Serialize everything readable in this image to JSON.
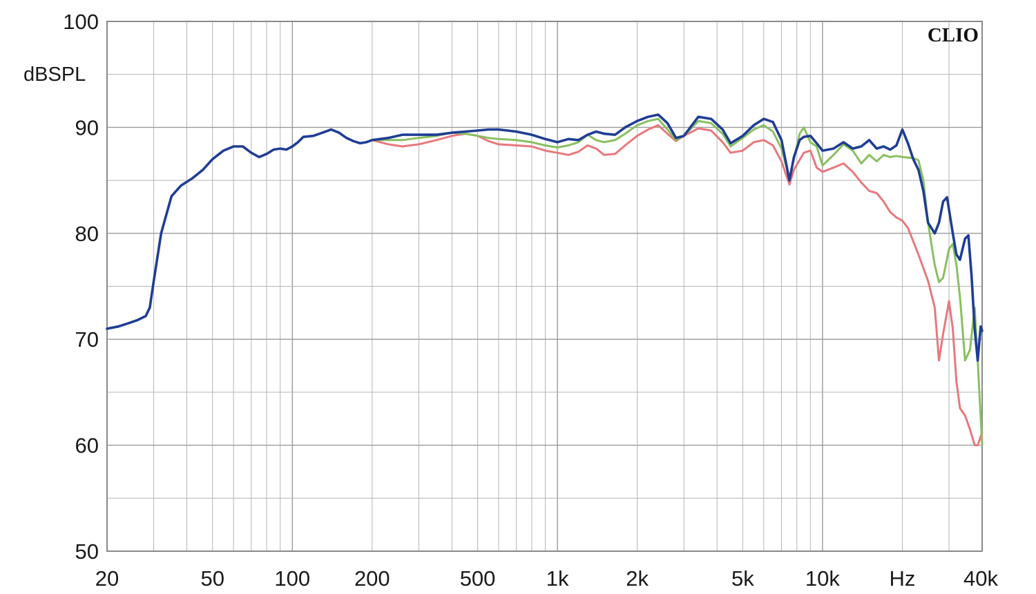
{
  "chart_data": {
    "type": "line",
    "title": "",
    "xlabel": "Hz",
    "ylabel": "dBSPL",
    "brand": "CLIO",
    "x_scale": "log",
    "xlim": [
      20,
      40000
    ],
    "ylim": [
      50,
      100
    ],
    "grid": true,
    "x_ticks": [
      {
        "value": 20,
        "label": "20"
      },
      {
        "value": 50,
        "label": "50"
      },
      {
        "value": 100,
        "label": "100"
      },
      {
        "value": 200,
        "label": "200"
      },
      {
        "value": 500,
        "label": "500"
      },
      {
        "value": 1000,
        "label": "1k"
      },
      {
        "value": 2000,
        "label": "2k"
      },
      {
        "value": 5000,
        "label": "5k"
      },
      {
        "value": 10000,
        "label": "10k"
      },
      {
        "value": 20000,
        "label": "Hz"
      },
      {
        "value": 40000,
        "label": "40k"
      }
    ],
    "y_ticks": [
      {
        "value": 100,
        "label": "100"
      },
      {
        "value": 90,
        "label": "90"
      },
      {
        "value": 80,
        "label": "80"
      },
      {
        "value": 70,
        "label": "70"
      },
      {
        "value": 60,
        "label": "60"
      },
      {
        "value": 50,
        "label": "50"
      }
    ],
    "series": [
      {
        "color": "#e8787c",
        "points": [
          [
            200,
            88.8
          ],
          [
            230,
            88.4
          ],
          [
            260,
            88.2
          ],
          [
            300,
            88.4
          ],
          [
            350,
            88.8
          ],
          [
            400,
            89.2
          ],
          [
            450,
            89.4
          ],
          [
            500,
            89.2
          ],
          [
            550,
            88.7
          ],
          [
            600,
            88.4
          ],
          [
            700,
            88.3
          ],
          [
            800,
            88.2
          ],
          [
            900,
            87.8
          ],
          [
            1000,
            87.6
          ],
          [
            1100,
            87.4
          ],
          [
            1200,
            87.7
          ],
          [
            1300,
            88.3
          ],
          [
            1400,
            88.0
          ],
          [
            1500,
            87.4
          ],
          [
            1650,
            87.5
          ],
          [
            1800,
            88.3
          ],
          [
            2000,
            89.2
          ],
          [
            2200,
            89.8
          ],
          [
            2400,
            90.2
          ],
          [
            2600,
            89.4
          ],
          [
            2800,
            88.7
          ],
          [
            3000,
            89.2
          ],
          [
            3400,
            89.9
          ],
          [
            3800,
            89.7
          ],
          [
            4200,
            88.6
          ],
          [
            4500,
            87.6
          ],
          [
            5000,
            87.8
          ],
          [
            5500,
            88.6
          ],
          [
            6000,
            88.8
          ],
          [
            6500,
            88.3
          ],
          [
            7000,
            86.8
          ],
          [
            7500,
            84.6
          ],
          [
            7800,
            86.0
          ],
          [
            8500,
            87.6
          ],
          [
            9000,
            87.8
          ],
          [
            9500,
            86.2
          ],
          [
            10000,
            85.8
          ],
          [
            11000,
            86.2
          ],
          [
            12000,
            86.6
          ],
          [
            13000,
            85.8
          ],
          [
            14000,
            84.8
          ],
          [
            15000,
            84.0
          ],
          [
            16000,
            83.8
          ],
          [
            17000,
            83.0
          ],
          [
            18000,
            82.0
          ],
          [
            19000,
            81.5
          ],
          [
            20000,
            81.2
          ],
          [
            21000,
            80.5
          ],
          [
            23000,
            78.0
          ],
          [
            25000,
            75.5
          ],
          [
            26500,
            73.0
          ],
          [
            27500,
            68.0
          ],
          [
            28500,
            70.5
          ],
          [
            30000,
            73.6
          ],
          [
            31000,
            71.0
          ],
          [
            32000,
            66.0
          ],
          [
            33000,
            63.5
          ],
          [
            34500,
            62.8
          ],
          [
            36000,
            61.5
          ],
          [
            37500,
            60.0
          ],
          [
            38500,
            60.0
          ],
          [
            40000,
            61.2
          ]
        ]
      },
      {
        "color": "#88c060",
        "points": [
          [
            200,
            88.8
          ],
          [
            230,
            88.8
          ],
          [
            260,
            88.8
          ],
          [
            300,
            89.0
          ],
          [
            350,
            89.2
          ],
          [
            400,
            89.5
          ],
          [
            450,
            89.4
          ],
          [
            500,
            89.2
          ],
          [
            550,
            89.0
          ],
          [
            600,
            88.9
          ],
          [
            700,
            88.8
          ],
          [
            800,
            88.6
          ],
          [
            900,
            88.3
          ],
          [
            1000,
            88.1
          ],
          [
            1100,
            88.3
          ],
          [
            1200,
            88.6
          ],
          [
            1300,
            89.3
          ],
          [
            1400,
            88.8
          ],
          [
            1500,
            88.6
          ],
          [
            1650,
            88.8
          ],
          [
            1800,
            89.4
          ],
          [
            2000,
            90.2
          ],
          [
            2200,
            90.6
          ],
          [
            2400,
            90.8
          ],
          [
            2600,
            89.8
          ],
          [
            2800,
            88.8
          ],
          [
            3000,
            89.2
          ],
          [
            3400,
            90.6
          ],
          [
            3800,
            90.4
          ],
          [
            4200,
            89.4
          ],
          [
            4500,
            88.2
          ],
          [
            5000,
            89.0
          ],
          [
            5500,
            89.8
          ],
          [
            6000,
            90.2
          ],
          [
            6500,
            89.6
          ],
          [
            7000,
            88.0
          ],
          [
            7500,
            85.2
          ],
          [
            7800,
            87.0
          ],
          [
            8200,
            89.4
          ],
          [
            8500,
            90.0
          ],
          [
            9000,
            88.6
          ],
          [
            9500,
            88.2
          ],
          [
            10000,
            86.4
          ],
          [
            11000,
            87.4
          ],
          [
            12000,
            88.4
          ],
          [
            13000,
            87.8
          ],
          [
            14000,
            86.6
          ],
          [
            15000,
            87.4
          ],
          [
            16000,
            86.8
          ],
          [
            17000,
            87.4
          ],
          [
            18000,
            87.2
          ],
          [
            19000,
            87.3
          ],
          [
            20000,
            87.2
          ],
          [
            22000,
            87.1
          ],
          [
            23000,
            86.9
          ],
          [
            24000,
            85.0
          ],
          [
            25000,
            81.0
          ],
          [
            26500,
            77.0
          ],
          [
            27500,
            75.4
          ],
          [
            28500,
            75.8
          ],
          [
            30000,
            78.5
          ],
          [
            31000,
            79.0
          ],
          [
            32000,
            77.0
          ],
          [
            33000,
            74.0
          ],
          [
            34500,
            68.0
          ],
          [
            36000,
            69.0
          ],
          [
            37500,
            73.0
          ],
          [
            38500,
            68.0
          ],
          [
            40000,
            60.0
          ]
        ]
      },
      {
        "color": "#1f3d94",
        "points": [
          [
            20,
            71.0
          ],
          [
            22,
            71.2
          ],
          [
            24,
            71.5
          ],
          [
            26,
            71.8
          ],
          [
            28,
            72.2
          ],
          [
            29,
            73.0
          ],
          [
            30,
            75.5
          ],
          [
            32,
            80.0
          ],
          [
            35,
            83.5
          ],
          [
            38,
            84.5
          ],
          [
            42,
            85.2
          ],
          [
            46,
            86.0
          ],
          [
            50,
            87.0
          ],
          [
            55,
            87.8
          ],
          [
            60,
            88.2
          ],
          [
            65,
            88.2
          ],
          [
            70,
            87.6
          ],
          [
            75,
            87.2
          ],
          [
            80,
            87.5
          ],
          [
            85,
            87.9
          ],
          [
            90,
            88.0
          ],
          [
            95,
            87.9
          ],
          [
            100,
            88.2
          ],
          [
            105,
            88.6
          ],
          [
            110,
            89.1
          ],
          [
            120,
            89.2
          ],
          [
            130,
            89.5
          ],
          [
            140,
            89.8
          ],
          [
            150,
            89.5
          ],
          [
            160,
            89.0
          ],
          [
            170,
            88.7
          ],
          [
            180,
            88.5
          ],
          [
            190,
            88.6
          ],
          [
            200,
            88.8
          ],
          [
            230,
            89.0
          ],
          [
            260,
            89.3
          ],
          [
            300,
            89.3
          ],
          [
            350,
            89.3
          ],
          [
            400,
            89.5
          ],
          [
            450,
            89.6
          ],
          [
            500,
            89.7
          ],
          [
            550,
            89.8
          ],
          [
            600,
            89.8
          ],
          [
            700,
            89.6
          ],
          [
            800,
            89.3
          ],
          [
            900,
            88.9
          ],
          [
            1000,
            88.6
          ],
          [
            1100,
            88.9
          ],
          [
            1200,
            88.8
          ],
          [
            1300,
            89.3
          ],
          [
            1400,
            89.6
          ],
          [
            1500,
            89.4
          ],
          [
            1650,
            89.3
          ],
          [
            1800,
            90.0
          ],
          [
            2000,
            90.6
          ],
          [
            2200,
            91.0
          ],
          [
            2400,
            91.2
          ],
          [
            2600,
            90.4
          ],
          [
            2800,
            89.0
          ],
          [
            3000,
            89.2
          ],
          [
            3400,
            91.0
          ],
          [
            3800,
            90.8
          ],
          [
            4200,
            89.8
          ],
          [
            4500,
            88.5
          ],
          [
            5000,
            89.2
          ],
          [
            5500,
            90.2
          ],
          [
            6000,
            90.8
          ],
          [
            6500,
            90.5
          ],
          [
            7000,
            88.8
          ],
          [
            7500,
            85.0
          ],
          [
            7800,
            87.2
          ],
          [
            8200,
            88.8
          ],
          [
            8500,
            89.1
          ],
          [
            9000,
            89.2
          ],
          [
            9500,
            88.5
          ],
          [
            10000,
            87.8
          ],
          [
            11000,
            88.0
          ],
          [
            12000,
            88.6
          ],
          [
            13000,
            88.0
          ],
          [
            14000,
            88.2
          ],
          [
            15000,
            88.8
          ],
          [
            16000,
            88.0
          ],
          [
            17000,
            88.2
          ],
          [
            18000,
            87.9
          ],
          [
            19000,
            88.3
          ],
          [
            20000,
            89.8
          ],
          [
            21000,
            88.5
          ],
          [
            22000,
            87.0
          ],
          [
            23000,
            86.0
          ],
          [
            24000,
            84.0
          ],
          [
            25000,
            81.0
          ],
          [
            26500,
            80.0
          ],
          [
            27500,
            81.0
          ],
          [
            28500,
            83.0
          ],
          [
            29500,
            83.4
          ],
          [
            31000,
            80.0
          ],
          [
            32000,
            78.0
          ],
          [
            33000,
            77.5
          ],
          [
            34500,
            79.5
          ],
          [
            35500,
            79.8
          ],
          [
            36500,
            76.0
          ],
          [
            37500,
            71.0
          ],
          [
            38500,
            68.0
          ],
          [
            39500,
            71.2
          ],
          [
            40000,
            70.8
          ]
        ]
      }
    ]
  }
}
